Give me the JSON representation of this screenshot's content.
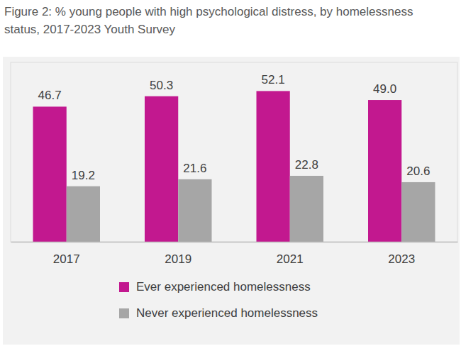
{
  "chart_data": {
    "type": "bar",
    "title": "Figure 2: % young people with high psychological distress, by homelessness status, 2017-2023 Youth Survey",
    "categories": [
      "2017",
      "2019",
      "2021",
      "2023"
    ],
    "series": [
      {
        "name": "Ever experienced homelessness",
        "color": "#c2188f",
        "values": [
          46.7,
          50.3,
          52.1,
          49.0
        ],
        "value_labels": [
          "46.7",
          "50.3",
          "52.1",
          "49.0"
        ]
      },
      {
        "name": "Never experienced homelessness",
        "color": "#a6a6a6",
        "values": [
          19.2,
          21.6,
          22.8,
          20.6
        ]
      }
    ],
    "ylim": [
      0,
      62
    ],
    "grid": false,
    "data_labels": true,
    "tick_labels": "x",
    "legend": "bottom"
  }
}
